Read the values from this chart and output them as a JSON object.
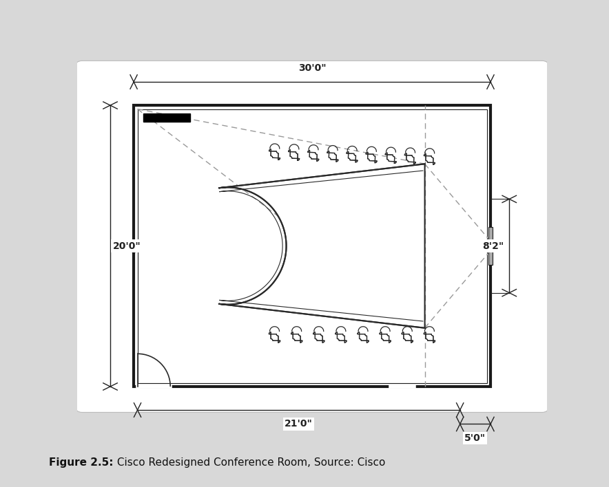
{
  "bg_color": "#d8d8d8",
  "wall_color": "#1a1a1a",
  "line_color": "#2a2a2a",
  "dashed_color": "#999999",
  "dim_color": "#222222",
  "title_bold": "Figure 2.5:",
  "title_rest": " Cisco Redesigned Conference Room, Source: Cisco",
  "dim_30": "30'0\"",
  "dim_20": "20'0\"",
  "dim_21": "21'0\"",
  "dim_82": "8'2\"",
  "dim_5": "5'0\""
}
